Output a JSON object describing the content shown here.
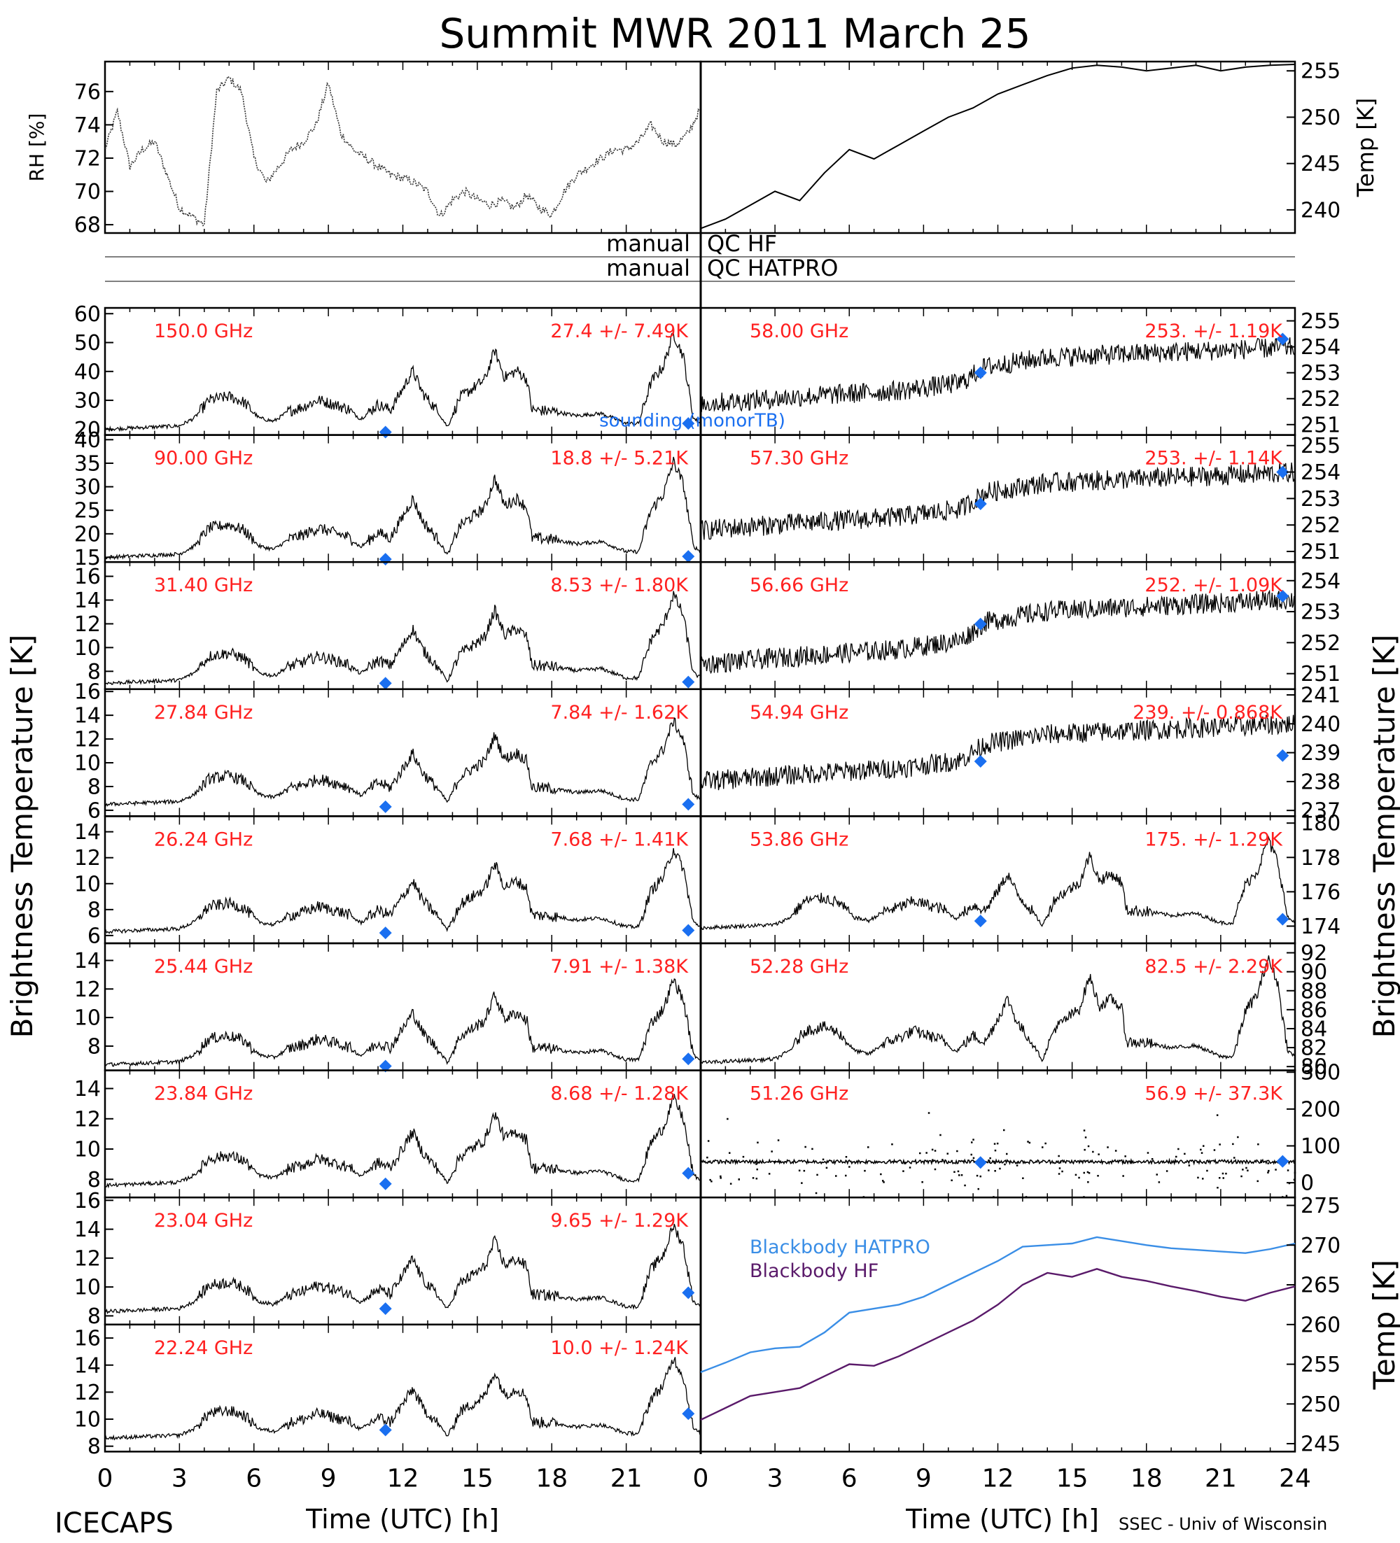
{
  "title": "Summit MWR 2011 March 25",
  "footer": {
    "left": "ICECAPS",
    "right": "SSEC - Univ of Wisconsin"
  },
  "colors": {
    "label": "#ff2020",
    "sounding": "#1a6ff0",
    "blackbody_hatpro": "#3a8ee6",
    "blackbody_hf": "#5a1a6a",
    "ink": "#000000"
  },
  "axes": {
    "xlabel": "Time (UTC) [h]",
    "x_ticks_left": [
      "0",
      "3",
      "6",
      "9",
      "12",
      "15",
      "18",
      "21"
    ],
    "x_ticks_right": [
      "0",
      "3",
      "6",
      "9",
      "12",
      "15",
      "18",
      "21",
      "24"
    ],
    "left_ylabel": "Brightness Temperature [K]",
    "right_ylabel": "Brightness Temperature [K]"
  },
  "qc": {
    "hf": {
      "left": "manual",
      "right": "QC HF"
    },
    "hatpro": {
      "left": "manual",
      "right": "QC HATPRO"
    }
  },
  "chart_data": [
    {
      "id": "rh",
      "type": "line",
      "ylabel": "RH [%]",
      "ylim": [
        67.5,
        77.8
      ],
      "yticks": [
        68,
        70,
        72,
        74,
        76
      ],
      "x": [
        0,
        0.5,
        1,
        1.5,
        2,
        2.5,
        3,
        3.5,
        4,
        4.5,
        5,
        5.5,
        6,
        6.5,
        7,
        7.5,
        8,
        8.5,
        9,
        9.5,
        10,
        10.5,
        11,
        11.5,
        12,
        12.5,
        13,
        13.5,
        14,
        14.5,
        15,
        15.5,
        16,
        16.5,
        17,
        17.5,
        18,
        18.5,
        19,
        19.5,
        20,
        20.5,
        21,
        21.5,
        22,
        22.5,
        23,
        23.5,
        24
      ],
      "values": [
        72.5,
        74.8,
        71.5,
        72.5,
        73.0,
        71.0,
        69.0,
        68.5,
        68.0,
        76.0,
        76.8,
        76.0,
        72.0,
        70.5,
        71.5,
        72.5,
        73.0,
        74.0,
        76.5,
        73.5,
        72.5,
        72.0,
        71.5,
        71.0,
        70.8,
        70.5,
        70.0,
        68.5,
        69.5,
        70.0,
        69.5,
        69.2,
        69.4,
        69.0,
        69.8,
        69.0,
        68.6,
        70.0,
        71.0,
        71.5,
        72.0,
        72.5,
        72.5,
        73.0,
        74.0,
        73.0,
        72.8,
        73.5,
        75.0
      ]
    },
    {
      "id": "temp",
      "type": "line",
      "ylabel": "Temp [K]",
      "ylim": [
        237.5,
        256.0
      ],
      "yticks": [
        240,
        245,
        250,
        255
      ],
      "x": [
        0,
        1,
        2,
        3,
        4,
        5,
        6,
        7,
        8,
        9,
        10,
        11,
        12,
        13,
        14,
        15,
        16,
        17,
        18,
        19,
        20,
        21,
        22,
        23,
        24
      ],
      "values": [
        238.0,
        239.0,
        240.5,
        242.0,
        241.0,
        244.0,
        246.5,
        245.5,
        247.0,
        248.5,
        250.0,
        251.0,
        252.5,
        253.5,
        254.5,
        255.3,
        255.6,
        255.4,
        255.0,
        255.3,
        255.6,
        255.0,
        255.4,
        255.6,
        255.7
      ]
    },
    {
      "id": "ch150",
      "type": "line",
      "side": "left",
      "label": "150.0 GHz",
      "stat": "27.4 +/- 7.49K",
      "ylim": [
        18,
        62
      ],
      "yticks": [
        20,
        30,
        40,
        50,
        60
      ],
      "base": 20,
      "amp": 3.9,
      "sounding": [
        [
          11.3,
          19
        ],
        [
          23.5,
          22
        ]
      ],
      "note": "sounding (monorTB)"
    },
    {
      "id": "ch90",
      "type": "line",
      "side": "left",
      "label": "90.00 GHz",
      "stat": "18.8 +/- 5.21K",
      "ylim": [
        14,
        41
      ],
      "yticks": [
        15,
        20,
        25,
        30,
        35,
        40
      ],
      "base": 15,
      "amp": 2.4,
      "sounding": [
        [
          11.3,
          14.6
        ],
        [
          23.5,
          15.2
        ]
      ]
    },
    {
      "id": "ch31",
      "type": "line",
      "side": "left",
      "label": "31.40 GHz",
      "stat": "8.53 +/- 1.80K",
      "ylim": [
        6.5,
        17.2
      ],
      "yticks": [
        8,
        10,
        12,
        14,
        16
      ],
      "base": 7.0,
      "amp": 0.88,
      "sounding": [
        [
          11.3,
          7.0
        ],
        [
          23.5,
          7.1
        ]
      ]
    },
    {
      "id": "ch27",
      "type": "line",
      "side": "left",
      "label": "27.84 GHz",
      "stat": "7.84 +/- 1.62K",
      "ylim": [
        5.5,
        16.2
      ],
      "yticks": [
        6,
        8,
        10,
        12,
        14,
        16
      ],
      "base": 6.5,
      "amp": 0.83,
      "sounding": [
        [
          11.3,
          6.3
        ],
        [
          23.5,
          6.5
        ]
      ]
    },
    {
      "id": "ch26",
      "type": "line",
      "side": "left",
      "label": "26.24 GHz",
      "stat": "7.68 +/- 1.41K",
      "ylim": [
        5.4,
        15.2
      ],
      "yticks": [
        6,
        8,
        10,
        12,
        14
      ],
      "base": 6.3,
      "amp": 0.75,
      "sounding": [
        [
          11.3,
          6.2
        ],
        [
          23.5,
          6.4
        ]
      ]
    },
    {
      "id": "ch25",
      "type": "line",
      "side": "left",
      "label": "25.44 GHz",
      "stat": "7.91 +/- 1.38K",
      "ylim": [
        6.3,
        15.2
      ],
      "yticks": [
        8,
        10,
        12,
        14
      ],
      "base": 6.7,
      "amp": 0.7,
      "sounding": [
        [
          11.3,
          6.6
        ],
        [
          23.5,
          7.1
        ]
      ]
    },
    {
      "id": "ch23_8",
      "type": "line",
      "side": "left",
      "label": "23.84 GHz",
      "stat": "8.68 +/- 1.28K",
      "ylim": [
        6.8,
        15.2
      ],
      "yticks": [
        8,
        10,
        12,
        14
      ],
      "base": 7.6,
      "amp": 0.68,
      "sounding": [
        [
          11.3,
          7.7
        ],
        [
          23.5,
          8.4
        ]
      ]
    },
    {
      "id": "ch23_0",
      "type": "line",
      "side": "left",
      "label": "23.04 GHz",
      "stat": "9.65 +/- 1.29K",
      "ylim": [
        7.4,
        16.2
      ],
      "yticks": [
        8,
        10,
        12,
        14,
        16
      ],
      "base": 8.3,
      "amp": 0.7,
      "sounding": [
        [
          11.3,
          8.5
        ],
        [
          23.5,
          9.6
        ]
      ]
    },
    {
      "id": "ch22",
      "type": "line",
      "side": "left",
      "label": "22.24 GHz",
      "stat": "10.0 +/- 1.24K",
      "ylim": [
        7.6,
        17.0
      ],
      "yticks": [
        8,
        10,
        12,
        14,
        16
      ],
      "base": 8.6,
      "amp": 0.7,
      "sounding": [
        [
          11.3,
          9.2
        ],
        [
          23.5,
          10.4
        ]
      ]
    },
    {
      "id": "ch58",
      "type": "line",
      "side": "right",
      "label": "58.00 GHz",
      "stat": "253. +/- 1.19K",
      "ylim": [
        250.6,
        255.5
      ],
      "yticks": [
        251,
        252,
        253,
        254,
        255
      ],
      "base": 251.8,
      "amp": 2.3,
      "sounding": [
        [
          11.3,
          253.0
        ],
        [
          23.5,
          254.3
        ]
      ]
    },
    {
      "id": "ch57_3",
      "type": "line",
      "side": "right",
      "label": "57.30 GHz",
      "stat": "253. +/- 1.14K",
      "ylim": [
        250.6,
        255.4
      ],
      "yticks": [
        251,
        252,
        253,
        254,
        255
      ],
      "base": 251.8,
      "amp": 2.3,
      "sounding": [
        [
          11.3,
          252.8
        ],
        [
          23.5,
          254.0
        ]
      ]
    },
    {
      "id": "ch56_6",
      "type": "line",
      "side": "right",
      "label": "56.66 GHz",
      "stat": "252. +/- 1.09K",
      "ylim": [
        250.5,
        254.6
      ],
      "yticks": [
        251,
        252,
        253,
        254
      ],
      "base": 251.3,
      "amp": 2.2,
      "sounding": [
        [
          11.3,
          252.6
        ],
        [
          23.5,
          253.5
        ]
      ]
    },
    {
      "id": "ch54_9",
      "type": "line",
      "side": "right",
      "label": "54.94 GHz",
      "stat": "239. +/- 0.868K",
      "ylim": [
        236.8,
        241.2
      ],
      "yticks": [
        237,
        238,
        239,
        240,
        241
      ],
      "base": 238.0,
      "amp": 2.1,
      "sounding": [
        [
          11.3,
          238.7
        ],
        [
          23.5,
          238.9
        ]
      ]
    },
    {
      "id": "ch53_9",
      "type": "line",
      "side": "right",
      "label": "53.86 GHz",
      "stat": "175. +/- 1.29K",
      "ylim": [
        173.0,
        180.4
      ],
      "yticks": [
        174,
        176,
        178,
        180
      ],
      "base": 173.9,
      "amp": 0.6,
      "sounding": [
        [
          11.3,
          174.3
        ],
        [
          23.5,
          174.4
        ]
      ]
    },
    {
      "id": "ch52_3",
      "type": "line",
      "side": "right",
      "label": "52.28 GHz",
      "stat": "82.5 +/- 2.29K",
      "ylim": [
        79.6,
        93.0
      ],
      "yticks": [
        80,
        82,
        84,
        86,
        88,
        90,
        92
      ],
      "base": 80.4,
      "amp": 1.3,
      "sounding": []
    },
    {
      "id": "ch51_3",
      "type": "scatter",
      "side": "right",
      "label": "51.26 GHz",
      "stat": "56.9 +/- 37.3K",
      "ylim": [
        -40,
        305
      ],
      "yticks": [
        0,
        100,
        200,
        300
      ],
      "base": 57,
      "amp": 0,
      "sounding": [
        [
          11.3,
          55
        ],
        [
          23.5,
          58
        ]
      ]
    },
    {
      "id": "blackbody",
      "type": "line",
      "ylabel": "Temp [K]",
      "ylim": [
        244,
        276
      ],
      "yticks": [
        245,
        250,
        255,
        260,
        265,
        270,
        275
      ],
      "x": [
        0,
        1,
        2,
        3,
        4,
        5,
        6,
        7,
        8,
        9,
        10,
        11,
        12,
        13,
        14,
        15,
        16,
        17,
        18,
        19,
        20,
        21,
        22,
        23,
        24
      ],
      "series": [
        {
          "name": "Blackbody HATPRO",
          "values": [
            254.0,
            255.2,
            256.5,
            257.0,
            257.2,
            259.0,
            261.5,
            262.0,
            262.5,
            263.5,
            265.0,
            266.5,
            268.0,
            269.8,
            270.0,
            270.2,
            271.0,
            270.5,
            270.0,
            269.6,
            269.4,
            269.2,
            269.0,
            269.5,
            270.2
          ]
        },
        {
          "name": "Blackbody HF",
          "values": [
            248.0,
            249.5,
            251.0,
            251.5,
            252.0,
            253.5,
            255.0,
            254.8,
            256.0,
            257.5,
            259.0,
            260.5,
            262.5,
            265.0,
            266.5,
            266.0,
            267.0,
            266.0,
            265.5,
            264.8,
            264.2,
            263.5,
            263.0,
            264.0,
            264.8
          ]
        }
      ]
    }
  ]
}
